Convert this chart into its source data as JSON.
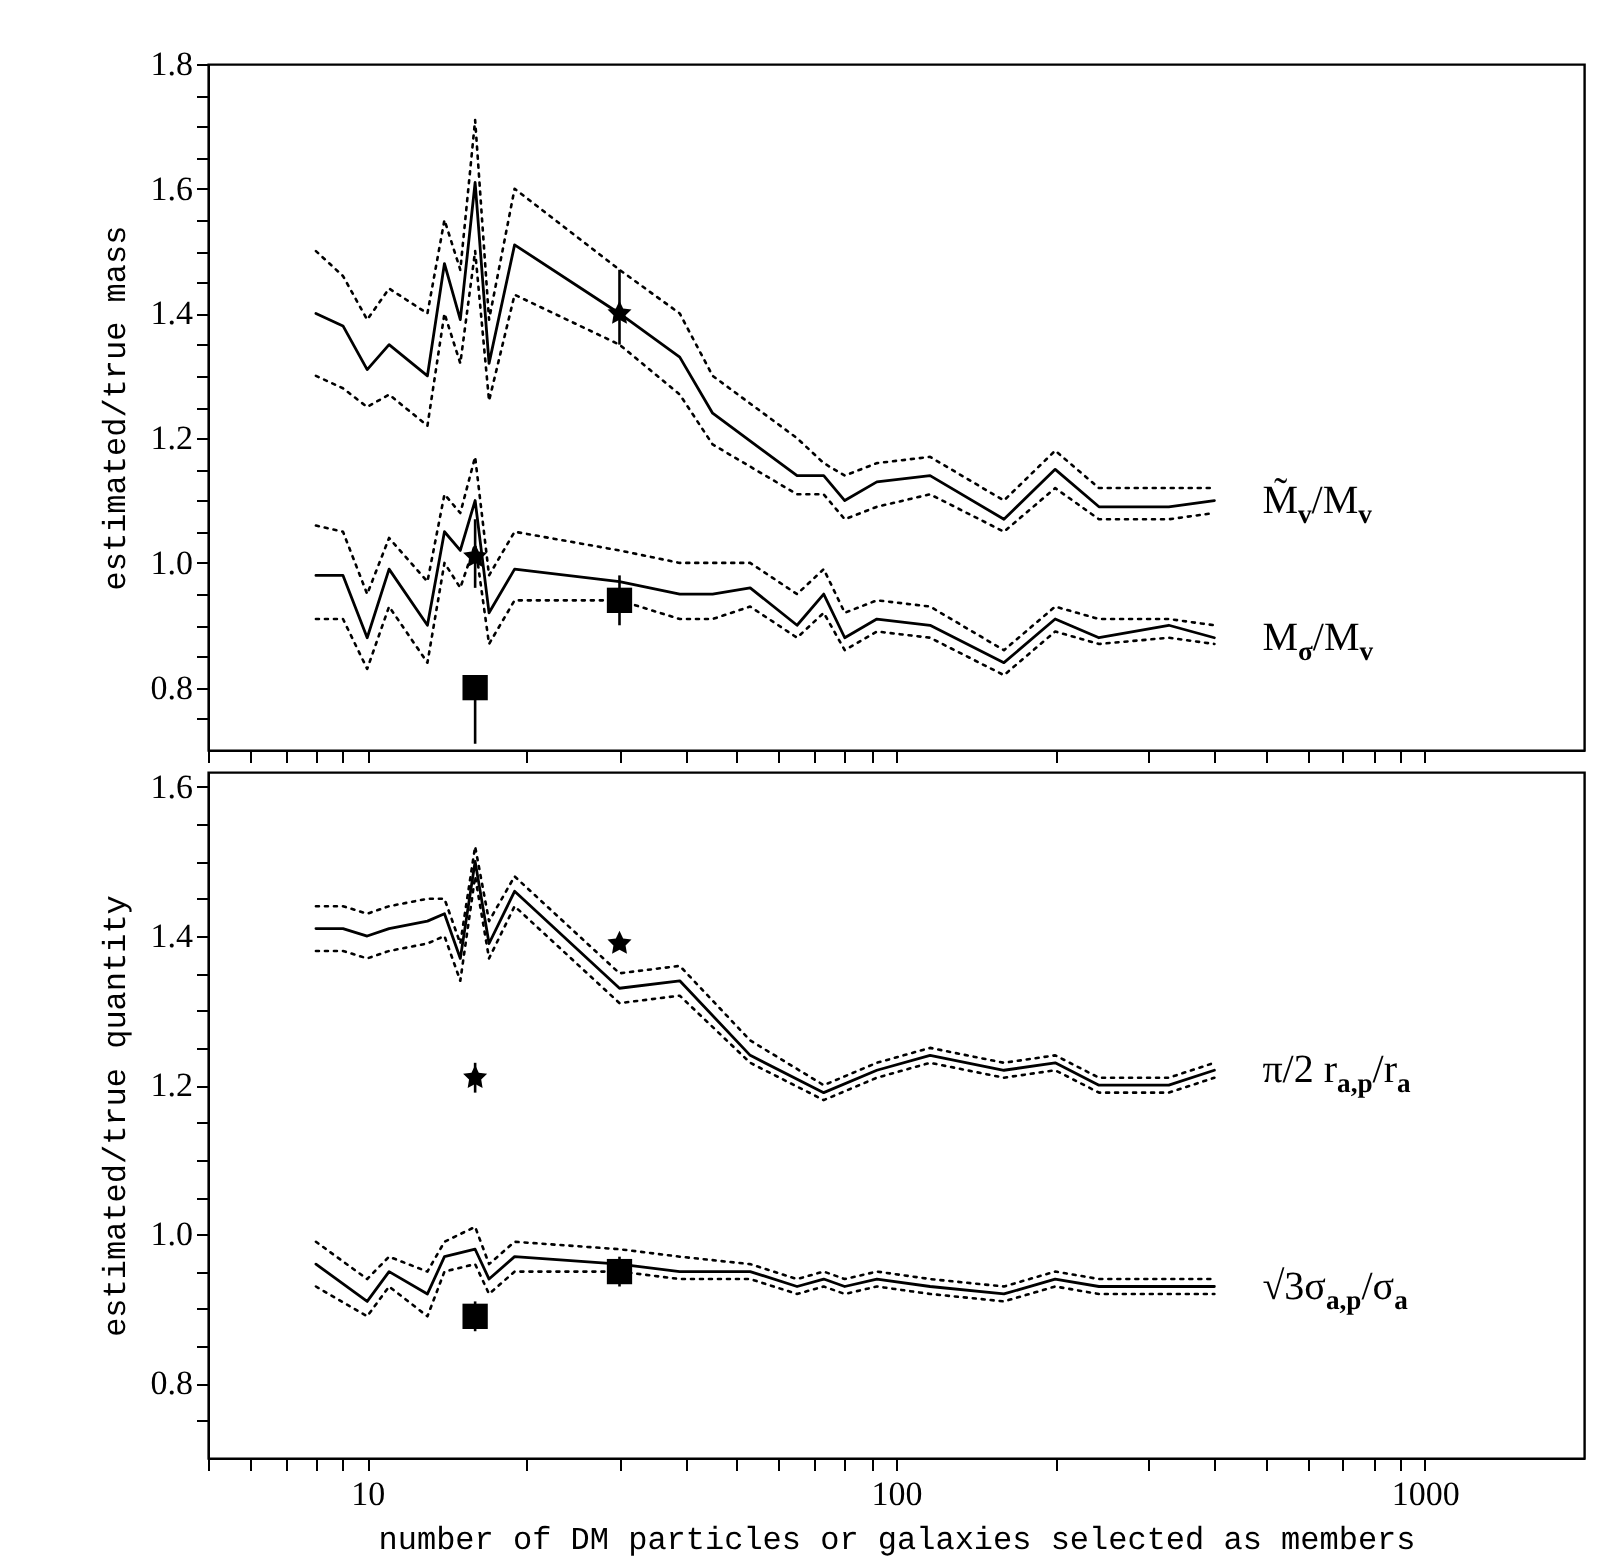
{
  "chart_data": [
    {
      "type": "line",
      "ylabel": "estimated/true mass",
      "log": "x",
      "tick_labels": "y",
      "line_style": "solid",
      "xlim": [
        5,
        2000
      ],
      "xticks": [
        {
          "value": 5,
          "label": null
        },
        {
          "value": 6,
          "label": null
        },
        {
          "value": 7,
          "label": null
        },
        {
          "value": 8,
          "label": null
        },
        {
          "value": 9,
          "label": null
        },
        10,
        {
          "value": 20,
          "label": null
        },
        {
          "value": 30,
          "label": null
        },
        {
          "value": 40,
          "label": null
        },
        {
          "value": 50,
          "label": null
        },
        {
          "value": 60,
          "label": null
        },
        {
          "value": 70,
          "label": null
        },
        {
          "value": 80,
          "label": null
        },
        {
          "value": 90,
          "label": null
        },
        100,
        {
          "value": 200,
          "label": null
        },
        {
          "value": 300,
          "label": null
        },
        {
          "value": 400,
          "label": null
        },
        {
          "value": 500,
          "label": null
        },
        {
          "value": 600,
          "label": null
        },
        {
          "value": 700,
          "label": null
        },
        {
          "value": 800,
          "label": null
        },
        {
          "value": 900,
          "label": null
        },
        1000
      ],
      "ylim": [
        0.7,
        1.8
      ],
      "yticks": [
        {
          "value": 0.75,
          "label": null
        },
        0.8,
        {
          "value": 0.85,
          "label": null
        },
        {
          "value": 0.9,
          "label": null
        },
        {
          "value": 0.95,
          "label": null
        },
        {
          "value": 1,
          "label": "1.0"
        },
        {
          "value": 1.05,
          "label": null
        },
        {
          "value": 1.1,
          "label": null
        },
        {
          "value": 1.15,
          "label": null
        },
        1.2,
        {
          "value": 1.25,
          "label": null
        },
        {
          "value": 1.3,
          "label": null
        },
        {
          "value": 1.35,
          "label": null
        },
        1.4,
        {
          "value": 1.45,
          "label": null
        },
        {
          "value": 1.5,
          "label": null
        },
        {
          "value": 1.55,
          "label": null
        },
        1.6,
        {
          "value": 1.65,
          "label": null
        },
        {
          "value": 1.7,
          "label": null
        },
        {
          "value": 1.75,
          "label": null
        },
        1.8
      ],
      "series": [
        {
          "name": "M̃$_{v}$/M$_{v}$",
          "color": "#000000",
          "x": [
            8,
            9,
            10,
            11,
            13,
            14,
            15,
            16,
            17,
            19,
            30,
            39,
            45,
            65,
            73,
            80,
            92,
            116,
            160,
            200,
            242,
            328,
            400
          ],
          "values": [
            1.4,
            1.38,
            1.31,
            1.35,
            1.3,
            1.48,
            1.39,
            1.61,
            1.32,
            1.51,
            1.4,
            1.33,
            1.24,
            1.14,
            1.14,
            1.1,
            1.13,
            1.14,
            1.07,
            1.15,
            1.09,
            1.09,
            1.1
          ]
        },
        {
          "color": "#000000",
          "line_style": "dotted",
          "x": [
            8,
            9,
            10,
            11,
            13,
            14,
            15,
            16,
            17,
            19,
            30,
            39,
            45,
            65,
            73,
            80,
            92,
            116,
            160,
            200,
            242,
            328,
            400
          ],
          "values": [
            1.5,
            1.46,
            1.39,
            1.44,
            1.4,
            1.55,
            1.47,
            1.71,
            1.39,
            1.6,
            1.47,
            1.4,
            1.3,
            1.2,
            1.16,
            1.14,
            1.16,
            1.17,
            1.1,
            1.18,
            1.12,
            1.12,
            1.12
          ]
        },
        {
          "color": "#000000",
          "line_style": "dotted",
          "x": [
            8,
            9,
            10,
            11,
            13,
            14,
            15,
            16,
            17,
            19,
            30,
            39,
            45,
            65,
            73,
            80,
            92,
            116,
            160,
            200,
            242,
            328,
            400
          ],
          "values": [
            1.3,
            1.28,
            1.25,
            1.27,
            1.22,
            1.4,
            1.32,
            1.5,
            1.26,
            1.43,
            1.35,
            1.27,
            1.19,
            1.11,
            1.11,
            1.07,
            1.09,
            1.11,
            1.05,
            1.12,
            1.07,
            1.07,
            1.08
          ]
        },
        {
          "name": "M$_{σ}$/M$_{v}$",
          "color": "#000000",
          "x": [
            8,
            9,
            10,
            11,
            13,
            14,
            15,
            16,
            17,
            19,
            30,
            39,
            45,
            53,
            65,
            73,
            80,
            92,
            116,
            160,
            200,
            242,
            328,
            400
          ],
          "values": [
            0.98,
            0.98,
            0.88,
            0.99,
            0.9,
            1.05,
            1.02,
            1.1,
            0.92,
            0.99,
            0.97,
            0.95,
            0.95,
            0.96,
            0.9,
            0.95,
            0.88,
            0.91,
            0.9,
            0.84,
            0.91,
            0.88,
            0.9,
            0.88
          ]
        },
        {
          "color": "#000000",
          "line_style": "dotted",
          "x": [
            8,
            9,
            10,
            11,
            13,
            14,
            15,
            16,
            17,
            19,
            30,
            39,
            45,
            53,
            65,
            73,
            80,
            92,
            116,
            160,
            200,
            242,
            328,
            400
          ],
          "values": [
            1.06,
            1.05,
            0.95,
            1.04,
            0.97,
            1.11,
            1.08,
            1.17,
            0.98,
            1.05,
            1.02,
            1.0,
            1.0,
            1.0,
            0.95,
            0.99,
            0.92,
            0.94,
            0.93,
            0.86,
            0.93,
            0.91,
            0.91,
            0.9
          ]
        },
        {
          "color": "#000000",
          "line_style": "dotted",
          "x": [
            8,
            9,
            10,
            11,
            13,
            14,
            15,
            16,
            17,
            19,
            30,
            39,
            45,
            53,
            65,
            73,
            80,
            92,
            116,
            160,
            200,
            242,
            328,
            400
          ],
          "values": [
            0.91,
            0.91,
            0.83,
            0.93,
            0.84,
            1.0,
            0.96,
            1.03,
            0.87,
            0.94,
            0.94,
            0.91,
            0.91,
            0.93,
            0.88,
            0.92,
            0.86,
            0.89,
            0.88,
            0.82,
            0.89,
            0.87,
            0.88,
            0.87
          ]
        },
        {
          "type": "scatter",
          "marker": "star",
          "color": "#000000",
          "x": [
            30,
            16
          ],
          "values": [
            1.4,
            1.01
          ],
          "errors": [
            [
              1.35,
              1.47
            ],
            [
              0.96,
              1.07
            ]
          ]
        },
        {
          "type": "scatter",
          "marker": "square",
          "color": "#000000",
          "x": [
            30,
            16
          ],
          "values": [
            0.94,
            0.8
          ],
          "errors": [
            [
              0.9,
              0.98
            ],
            [
              0.71,
              0.8
            ]
          ]
        }
      ]
    },
    {
      "type": "line",
      "ylabel": "estimated/true quantity",
      "xlabel": "number of DM particles or galaxies selected as members",
      "log": "x",
      "line_style": "solid",
      "xlim": [
        5,
        2000
      ],
      "xticks": [
        {
          "value": 5,
          "label": null
        },
        {
          "value": 6,
          "label": null
        },
        {
          "value": 7,
          "label": null
        },
        {
          "value": 8,
          "label": null
        },
        {
          "value": 9,
          "label": null
        },
        10,
        {
          "value": 20,
          "label": null
        },
        {
          "value": 30,
          "label": null
        },
        {
          "value": 40,
          "label": null
        },
        {
          "value": 50,
          "label": null
        },
        {
          "value": 60,
          "label": null
        },
        {
          "value": 70,
          "label": null
        },
        {
          "value": 80,
          "label": null
        },
        {
          "value": 90,
          "label": null
        },
        100,
        {
          "value": 200,
          "label": null
        },
        {
          "value": 300,
          "label": null
        },
        {
          "value": 400,
          "label": null
        },
        {
          "value": 500,
          "label": null
        },
        {
          "value": 600,
          "label": null
        },
        {
          "value": 700,
          "label": null
        },
        {
          "value": 800,
          "label": null
        },
        {
          "value": 900,
          "label": null
        },
        1000
      ],
      "ylim": [
        0.7,
        1.62
      ],
      "yticks": [
        {
          "value": 0.75,
          "label": null
        },
        0.8,
        {
          "value": 0.85,
          "label": null
        },
        {
          "value": 0.9,
          "label": null
        },
        {
          "value": 0.95,
          "label": null
        },
        {
          "value": 1,
          "label": "1.0"
        },
        {
          "value": 1.05,
          "label": null
        },
        {
          "value": 1.1,
          "label": null
        },
        {
          "value": 1.15,
          "label": null
        },
        1.2,
        {
          "value": 1.25,
          "label": null
        },
        {
          "value": 1.3,
          "label": null
        },
        {
          "value": 1.35,
          "label": null
        },
        1.4,
        {
          "value": 1.45,
          "label": null
        },
        {
          "value": 1.5,
          "label": null
        },
        {
          "value": 1.55,
          "label": null
        },
        1.6
      ],
      "series": [
        {
          "name": "π/2 r$_{a,p}$/r$_{a}$",
          "color": "#000000",
          "x": [
            8,
            9,
            10,
            11,
            13,
            14,
            15,
            16,
            17,
            19,
            30,
            39,
            53,
            73,
            92,
            116,
            160,
            200,
            242,
            328,
            400
          ],
          "values": [
            1.41,
            1.41,
            1.4,
            1.41,
            1.42,
            1.43,
            1.37,
            1.5,
            1.39,
            1.46,
            1.33,
            1.34,
            1.24,
            1.19,
            1.22,
            1.24,
            1.22,
            1.23,
            1.2,
            1.2,
            1.22
          ]
        },
        {
          "color": "#000000",
          "line_style": "dotted",
          "x": [
            8,
            9,
            10,
            11,
            13,
            14,
            15,
            16,
            17,
            19,
            30,
            39,
            53,
            73,
            92,
            116,
            160,
            200,
            242,
            328,
            400
          ],
          "values": [
            1.44,
            1.44,
            1.43,
            1.44,
            1.45,
            1.45,
            1.39,
            1.52,
            1.42,
            1.48,
            1.35,
            1.36,
            1.26,
            1.2,
            1.23,
            1.25,
            1.23,
            1.24,
            1.21,
            1.21,
            1.23
          ]
        },
        {
          "color": "#000000",
          "line_style": "dotted",
          "x": [
            8,
            9,
            10,
            11,
            13,
            14,
            15,
            16,
            17,
            19,
            30,
            39,
            53,
            73,
            92,
            116,
            160,
            200,
            242,
            328,
            400
          ],
          "values": [
            1.38,
            1.38,
            1.37,
            1.38,
            1.39,
            1.4,
            1.34,
            1.48,
            1.37,
            1.44,
            1.31,
            1.32,
            1.23,
            1.18,
            1.21,
            1.23,
            1.21,
            1.22,
            1.19,
            1.19,
            1.21
          ]
        },
        {
          "name": "√3σ$_{a,p}$/σ$_{a}$",
          "color": "#000000",
          "x": [
            8,
            10,
            11,
            13,
            14,
            16,
            17,
            19,
            30,
            39,
            53,
            65,
            73,
            80,
            92,
            116,
            160,
            200,
            242,
            400
          ],
          "values": [
            0.96,
            0.91,
            0.95,
            0.92,
            0.97,
            0.98,
            0.94,
            0.97,
            0.96,
            0.95,
            0.95,
            0.93,
            0.94,
            0.93,
            0.94,
            0.93,
            0.92,
            0.94,
            0.93,
            0.93
          ]
        },
        {
          "color": "#000000",
          "line_style": "dotted",
          "x": [
            8,
            10,
            11,
            13,
            14,
            16,
            17,
            19,
            30,
            39,
            53,
            65,
            73,
            80,
            92,
            116,
            160,
            200,
            242,
            400
          ],
          "values": [
            0.99,
            0.94,
            0.97,
            0.95,
            0.99,
            1.01,
            0.96,
            0.99,
            0.98,
            0.97,
            0.96,
            0.94,
            0.95,
            0.94,
            0.95,
            0.94,
            0.93,
            0.95,
            0.94,
            0.94
          ]
        },
        {
          "color": "#000000",
          "line_style": "dotted",
          "x": [
            8,
            10,
            11,
            13,
            14,
            16,
            17,
            19,
            30,
            39,
            53,
            65,
            73,
            80,
            92,
            116,
            160,
            200,
            242,
            400
          ],
          "values": [
            0.93,
            0.89,
            0.93,
            0.89,
            0.95,
            0.96,
            0.92,
            0.95,
            0.95,
            0.94,
            0.94,
            0.92,
            0.93,
            0.92,
            0.93,
            0.92,
            0.91,
            0.93,
            0.92,
            0.92
          ]
        },
        {
          "type": "scatter",
          "marker": "star",
          "color": "#000000",
          "x": [
            30,
            16
          ],
          "values": [
            1.39,
            1.21
          ],
          "errors": [
            null,
            0.02
          ]
        },
        {
          "type": "scatter",
          "marker": "square",
          "color": "#000000",
          "x": [
            30,
            16
          ],
          "values": [
            0.95,
            0.89
          ],
          "errors": [
            0.02,
            0.02
          ]
        }
      ]
    }
  ]
}
